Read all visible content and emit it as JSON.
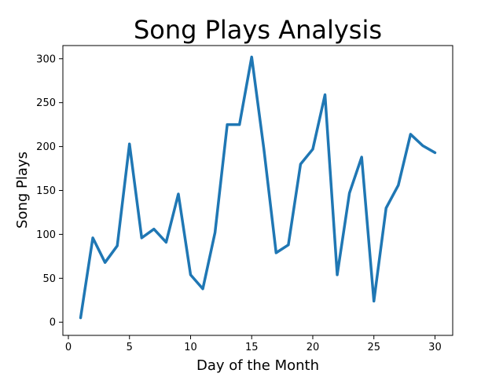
{
  "chart_data": {
    "type": "line",
    "title": "Song Plays Analysis",
    "xlabel": "Day of the Month",
    "ylabel": "Song Plays",
    "xlim": [
      -0.45,
      31.45
    ],
    "ylim": [
      -15,
      315
    ],
    "xticks": [
      0,
      5,
      10,
      15,
      20,
      25,
      30
    ],
    "yticks": [
      0,
      50,
      100,
      150,
      200,
      250,
      300
    ],
    "grid": false,
    "line_color": "#1f77b4",
    "x": [
      1,
      2,
      3,
      4,
      5,
      6,
      7,
      8,
      9,
      10,
      11,
      12,
      13,
      14,
      15,
      16,
      17,
      18,
      19,
      20,
      21,
      22,
      23,
      24,
      25,
      26,
      27,
      28,
      29,
      30
    ],
    "values": [
      5,
      96,
      68,
      87,
      203,
      96,
      106,
      91,
      146,
      54,
      38,
      102,
      225,
      225,
      302,
      197,
      79,
      88,
      180,
      197,
      259,
      54,
      147,
      188,
      24,
      130,
      156,
      214,
      201,
      193
    ]
  }
}
